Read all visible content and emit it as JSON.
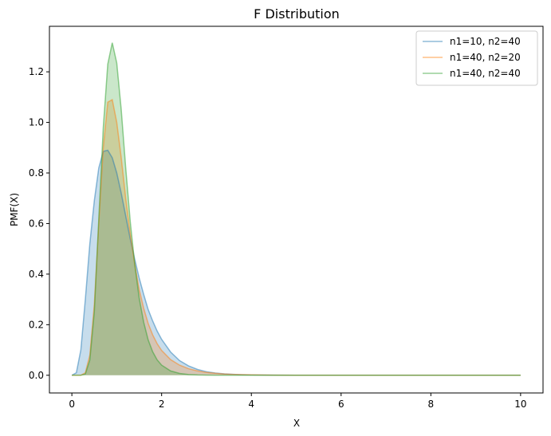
{
  "chart_data": {
    "type": "area",
    "title": "F Distribution",
    "xlabel": "X",
    "ylabel": "PMF(X)",
    "xlim": [
      -0.5,
      10.5
    ],
    "ylim": [
      -0.07,
      1.38
    ],
    "xticks": [
      0,
      2,
      4,
      6,
      8,
      10
    ],
    "yticks": [
      0.0,
      0.2,
      0.4,
      0.6,
      0.8,
      1.0,
      1.2
    ],
    "grid": false,
    "legend_position": "top-right",
    "series": [
      {
        "name": "n1=10, n2=40",
        "color": "#1f77b4",
        "x": [
          0,
          0.1,
          0.2,
          0.3,
          0.4,
          0.5,
          0.6,
          0.7,
          0.8,
          0.9,
          1.0,
          1.1,
          1.2,
          1.3,
          1.4,
          1.5,
          1.6,
          1.7,
          1.8,
          1.9,
          2.0,
          2.2,
          2.4,
          2.6,
          2.8,
          3.0,
          3.2,
          3.4,
          3.6,
          3.8,
          4.0,
          4.5,
          5.0,
          6.0,
          7.0,
          8.0,
          9.0,
          10.0
        ],
        "y": [
          0,
          0.01,
          0.1,
          0.3,
          0.52,
          0.69,
          0.82,
          0.885,
          0.89,
          0.86,
          0.8,
          0.72,
          0.63,
          0.54,
          0.46,
          0.385,
          0.32,
          0.26,
          0.215,
          0.175,
          0.142,
          0.092,
          0.058,
          0.037,
          0.023,
          0.014,
          0.009,
          0.0055,
          0.0035,
          0.0022,
          0.0014,
          0.0005,
          0.0002,
          3e-05,
          0,
          0,
          0,
          0
        ]
      },
      {
        "name": "n1=40, n2=20",
        "color": "#ff7f0e",
        "x": [
          0,
          0.1,
          0.2,
          0.3,
          0.4,
          0.5,
          0.6,
          0.7,
          0.8,
          0.9,
          1.0,
          1.1,
          1.2,
          1.3,
          1.4,
          1.5,
          1.6,
          1.7,
          1.8,
          1.9,
          2.0,
          2.2,
          2.4,
          2.6,
          2.8,
          3.0,
          3.2,
          3.4,
          3.6,
          3.8,
          4.0,
          4.5,
          5.0,
          6.0,
          7.0,
          8.0,
          9.0,
          10.0
        ],
        "y": [
          0,
          0,
          0.0,
          0.01,
          0.08,
          0.28,
          0.6,
          0.9,
          1.08,
          1.09,
          1.0,
          0.86,
          0.7,
          0.56,
          0.44,
          0.34,
          0.265,
          0.205,
          0.16,
          0.125,
          0.098,
          0.062,
          0.04,
          0.026,
          0.017,
          0.011,
          0.0075,
          0.005,
          0.0034,
          0.0023,
          0.0016,
          0.0007,
          0.0003,
          7e-05,
          2e-05,
          0,
          0,
          0
        ]
      },
      {
        "name": "n1=40, n2=40",
        "color": "#2ca02c",
        "x": [
          0,
          0.1,
          0.2,
          0.3,
          0.4,
          0.5,
          0.6,
          0.7,
          0.8,
          0.9,
          1.0,
          1.1,
          1.2,
          1.3,
          1.4,
          1.5,
          1.6,
          1.7,
          1.8,
          1.9,
          2.0,
          2.2,
          2.4,
          2.6,
          2.8,
          3.0,
          3.2,
          3.4,
          3.6,
          3.8,
          4.0,
          4.5,
          5.0,
          6.0,
          7.0,
          8.0,
          9.0,
          10.0
        ],
        "y": [
          0,
          0,
          0.0,
          0.005,
          0.06,
          0.25,
          0.62,
          0.98,
          1.23,
          1.315,
          1.235,
          1.05,
          0.82,
          0.61,
          0.44,
          0.305,
          0.21,
          0.14,
          0.093,
          0.061,
          0.04,
          0.017,
          0.0072,
          0.003,
          0.0013,
          0.0006,
          0.0003,
          0.00012,
          5e-05,
          2e-05,
          1e-05,
          0,
          0,
          0,
          0,
          0,
          0,
          0
        ]
      }
    ]
  }
}
